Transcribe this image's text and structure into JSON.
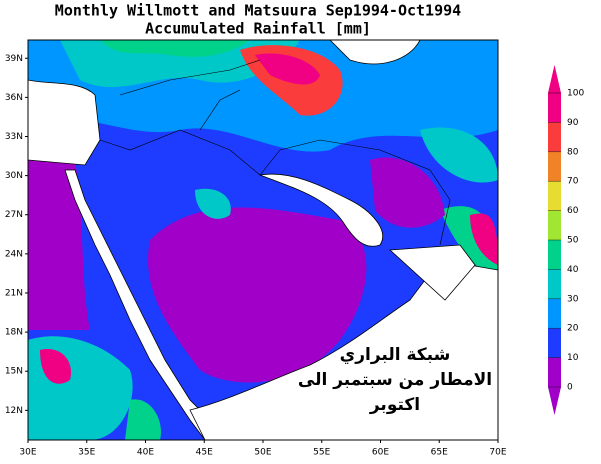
{
  "title": "Monthly Willmott and Matsuura Sep1994-Oct1994",
  "subtitle": "Accumulated Rainfall [mm]",
  "lat_ticks": [
    {
      "value": 39,
      "label": "39N"
    },
    {
      "value": 36,
      "label": "36N"
    },
    {
      "value": 33,
      "label": "33N"
    },
    {
      "value": 30,
      "label": "30N"
    },
    {
      "value": 27,
      "label": "27N"
    },
    {
      "value": 24,
      "label": "24N"
    },
    {
      "value": 21,
      "label": "21N"
    },
    {
      "value": 18,
      "label": "18N"
    },
    {
      "value": 15,
      "label": "15N"
    },
    {
      "value": 12,
      "label": "12N"
    }
  ],
  "lon_ticks": [
    {
      "value": 30,
      "label": "30E"
    },
    {
      "value": 35,
      "label": "35E"
    },
    {
      "value": 40,
      "label": "40E"
    },
    {
      "value": 45,
      "label": "45E"
    },
    {
      "value": 50,
      "label": "50E"
    },
    {
      "value": 55,
      "label": "55E"
    },
    {
      "value": 60,
      "label": "60E"
    },
    {
      "value": 65,
      "label": "65E"
    },
    {
      "value": 70,
      "label": "70E"
    }
  ],
  "colorbar": {
    "ticks": [
      0,
      10,
      20,
      30,
      40,
      50,
      60,
      70,
      80,
      90,
      100
    ],
    "colors": [
      "#a000c8",
      "#1e3cff",
      "#0096ff",
      "#00c8c8",
      "#00d28c",
      "#a0e632",
      "#e6dc32",
      "#f08228",
      "#fa3c3c",
      "#f00082"
    ]
  },
  "annotation": [
    "شبكة البراري",
    "الامطار من سبتمبر الى",
    "اكتوبر"
  ]
}
